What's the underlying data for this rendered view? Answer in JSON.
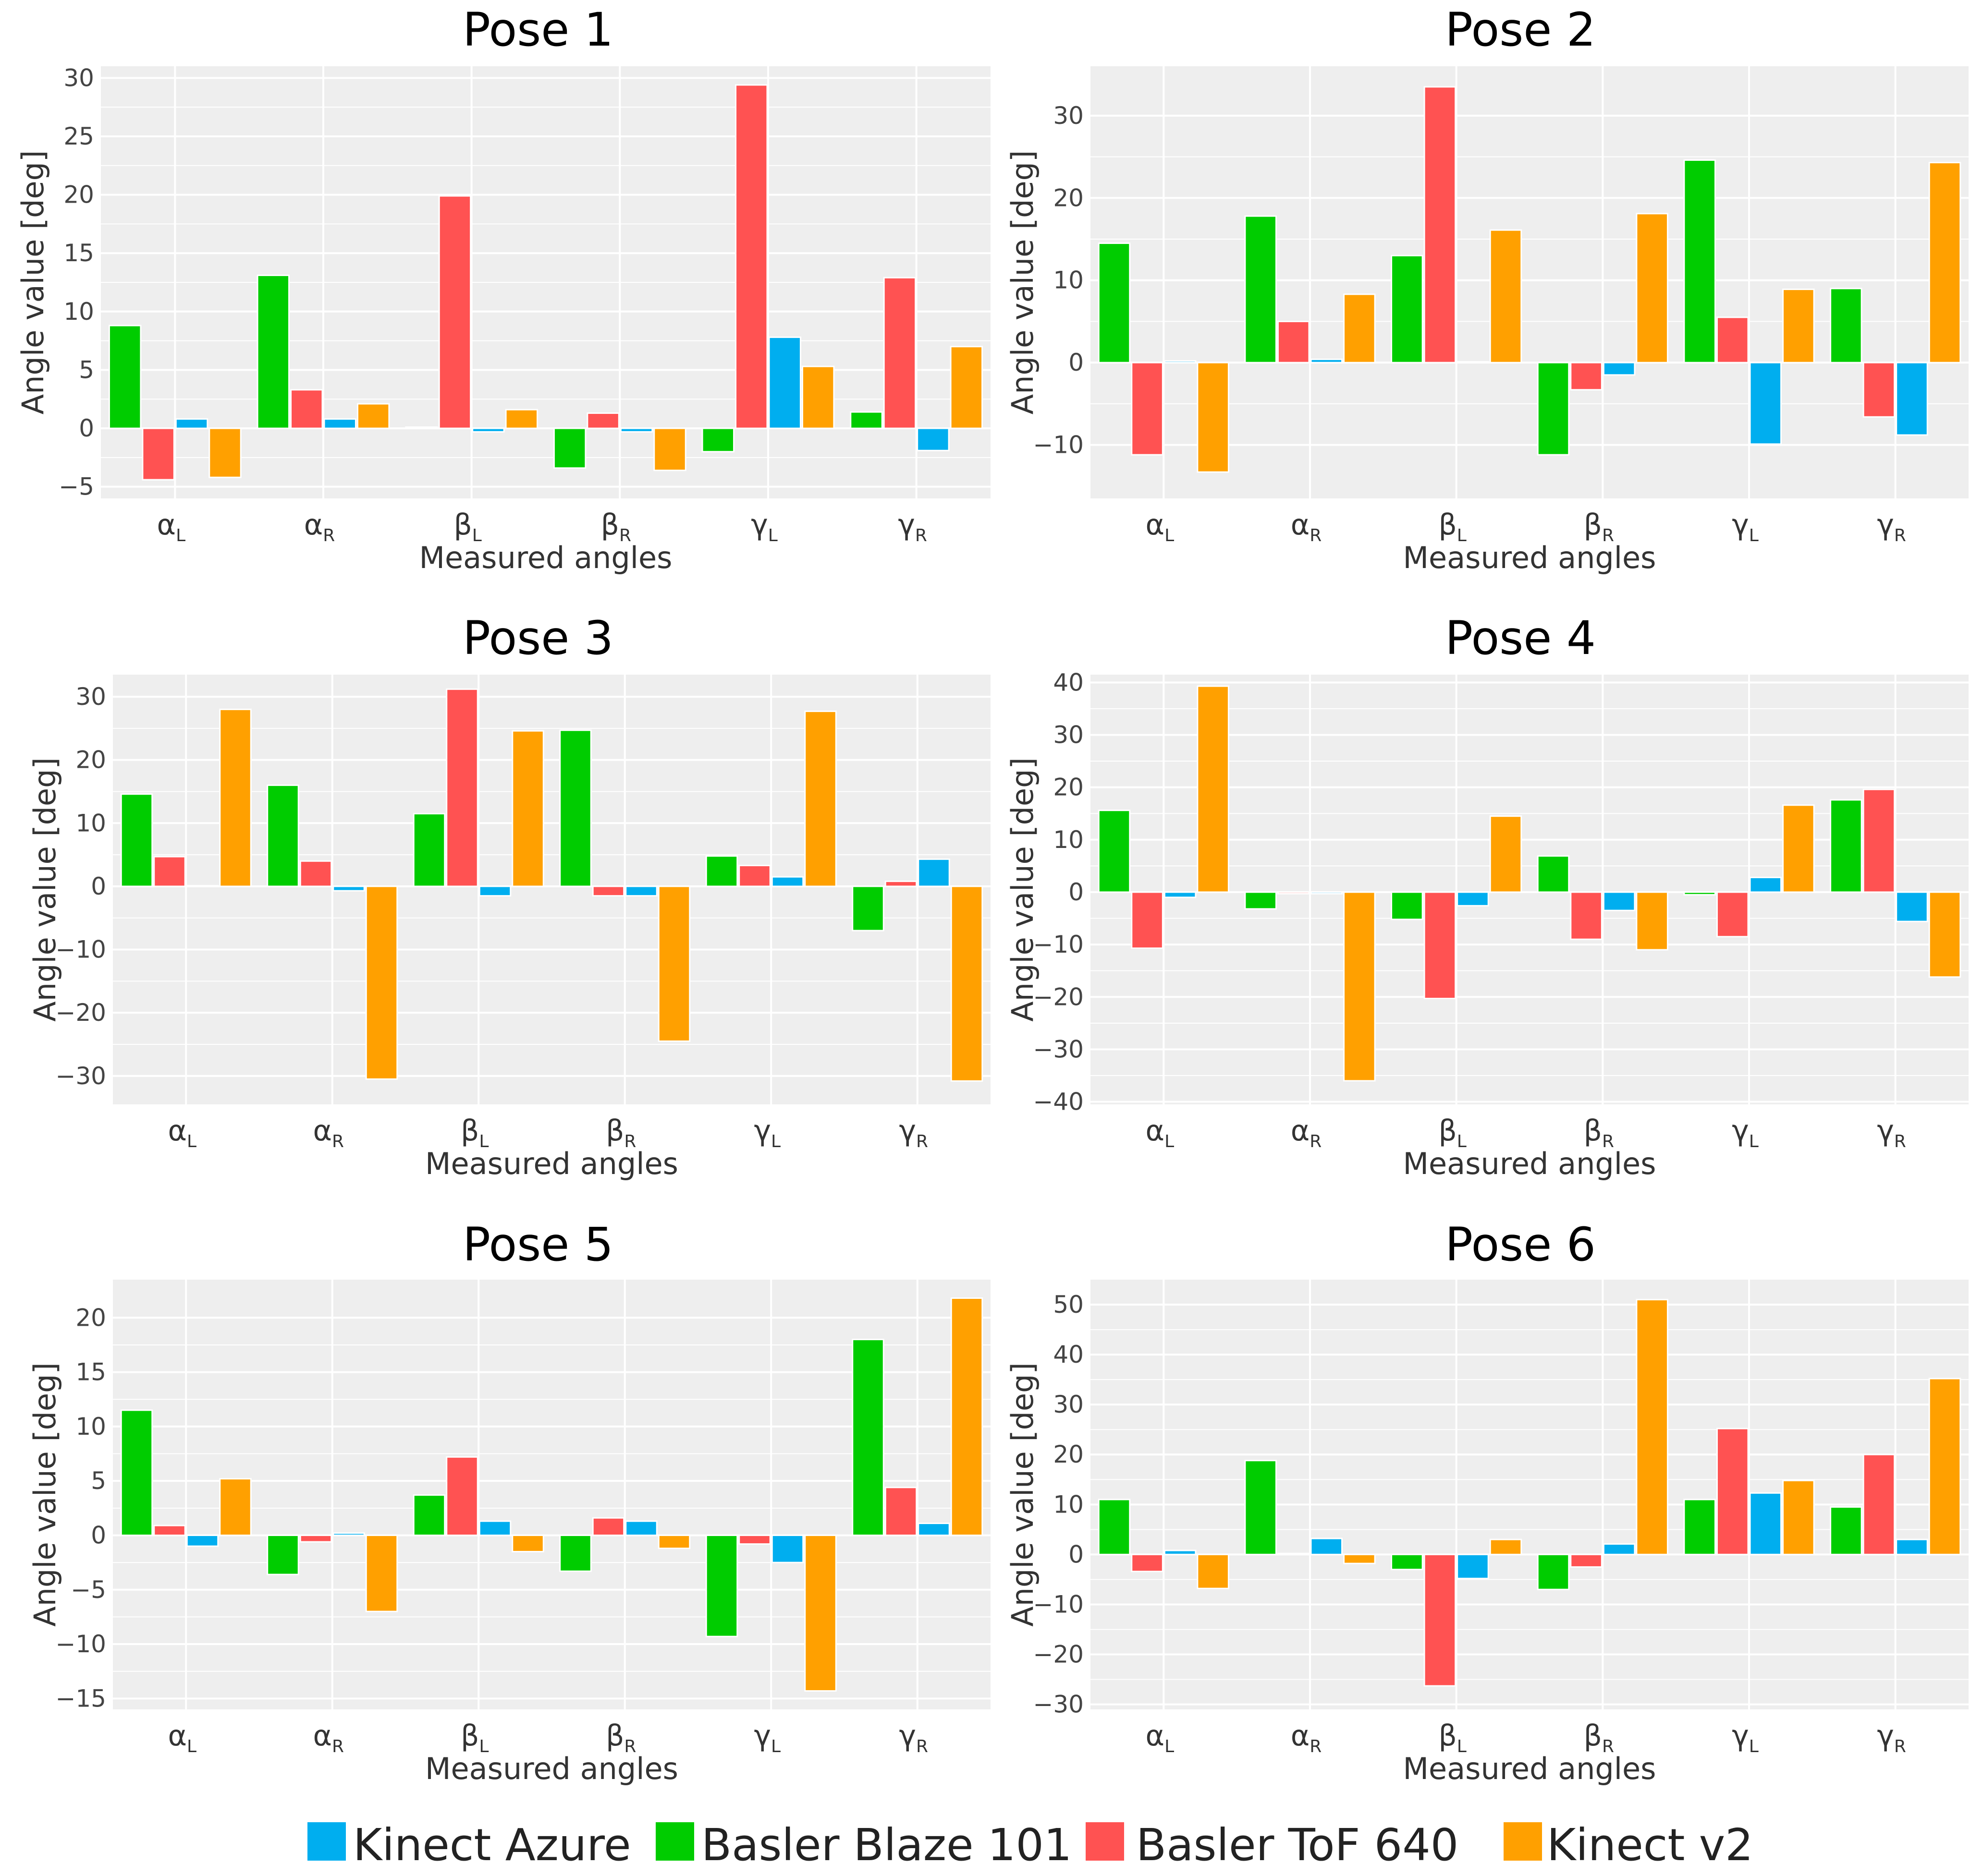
{
  "colors": {
    "Kinect Azure": "#00AEEF",
    "Basler Blaze 101": "#00CC00",
    "Basler ToF 640": "#FF5252",
    "Kinect v2": "#FFA000",
    "panel_bg": "#EEEEEE",
    "grid": "#FFFFFF"
  },
  "legend": {
    "placement": "bottom",
    "items": [
      "Kinect Azure",
      "Basler Blaze 101",
      "Basler ToF 640",
      "Kinect v2"
    ]
  },
  "categories": [
    {
      "main": "α",
      "sub": "L"
    },
    {
      "main": "α",
      "sub": "R"
    },
    {
      "main": "β",
      "sub": "L"
    },
    {
      "main": "β",
      "sub": "R"
    },
    {
      "main": "γ",
      "sub": "L"
    },
    {
      "main": "γ",
      "sub": "R"
    }
  ],
  "chart_data": [
    {
      "type": "bar",
      "title": "Pose 1",
      "xlabel": "Measured angles",
      "ylabel": "Angle value [deg]",
      "ylim": [
        -6,
        31
      ],
      "yticks": [
        -5,
        0,
        5,
        10,
        15,
        20,
        25,
        30
      ],
      "grid": true,
      "series": [
        {
          "name": "Basler Blaze 101",
          "values": [
            8.8,
            13.1,
            0.1,
            -3.4,
            -2.0,
            1.4
          ]
        },
        {
          "name": "Basler ToF 640",
          "values": [
            -4.4,
            3.3,
            19.9,
            1.3,
            29.4,
            12.9
          ]
        },
        {
          "name": "Kinect Azure",
          "values": [
            0.8,
            0.8,
            -0.3,
            -0.3,
            7.8,
            -1.9
          ]
        },
        {
          "name": "Kinect v2",
          "values": [
            -4.2,
            2.1,
            1.6,
            -3.6,
            5.3,
            7.0
          ]
        }
      ]
    },
    {
      "type": "bar",
      "title": "Pose 2",
      "xlabel": "Measured angles",
      "ylabel": "Angle value [deg]",
      "ylim": [
        -16.5,
        36
      ],
      "yticks": [
        -10,
        0,
        10,
        20,
        30
      ],
      "grid": true,
      "series": [
        {
          "name": "Basler Blaze 101",
          "values": [
            14.5,
            17.8,
            13.0,
            -11.2,
            24.6,
            9.0
          ]
        },
        {
          "name": "Basler ToF 640",
          "values": [
            -11.2,
            5.0,
            33.5,
            -3.3,
            5.5,
            -6.6
          ]
        },
        {
          "name": "Kinect Azure",
          "values": [
            0.2,
            0.4,
            0.1,
            -1.5,
            -9.9,
            -8.8
          ]
        },
        {
          "name": "Kinect v2",
          "values": [
            -13.3,
            8.3,
            16.1,
            18.1,
            8.9,
            24.3
          ]
        }
      ]
    },
    {
      "type": "bar",
      "title": "Pose 3",
      "xlabel": "Measured angles",
      "ylabel": "Angle value [deg]",
      "ylim": [
        -34.5,
        33.5
      ],
      "yticks": [
        -30,
        -20,
        -10,
        0,
        10,
        20,
        30
      ],
      "grid": true,
      "series": [
        {
          "name": "Basler Blaze 101",
          "values": [
            14.6,
            16.0,
            11.5,
            24.7,
            4.8,
            -7.0
          ]
        },
        {
          "name": "Basler ToF 640",
          "values": [
            4.7,
            4.0,
            31.2,
            -1.5,
            3.3,
            0.8
          ]
        },
        {
          "name": "Kinect Azure",
          "values": [
            0.1,
            -0.7,
            -1.5,
            -1.5,
            1.5,
            4.3
          ]
        },
        {
          "name": "Kinect v2",
          "values": [
            28.0,
            -30.5,
            24.6,
            -24.5,
            27.7,
            -30.8
          ]
        }
      ]
    },
    {
      "type": "bar",
      "title": "Pose 4",
      "xlabel": "Measured angles",
      "ylabel": "Angle value [deg]",
      "ylim": [
        -40.5,
        41.5
      ],
      "yticks": [
        -40,
        -30,
        -20,
        -10,
        0,
        10,
        20,
        30,
        40
      ],
      "grid": true,
      "series": [
        {
          "name": "Basler Blaze 101",
          "values": [
            15.6,
            -3.2,
            -5.2,
            6.9,
            -0.5,
            17.6
          ]
        },
        {
          "name": "Basler ToF 640",
          "values": [
            -10.7,
            -0.3,
            -20.3,
            -9.0,
            -8.5,
            19.6
          ]
        },
        {
          "name": "Kinect Azure",
          "values": [
            -1.0,
            -0.3,
            -2.6,
            -3.5,
            2.8,
            -5.6
          ]
        },
        {
          "name": "Kinect v2",
          "values": [
            39.3,
            -36.0,
            14.5,
            -11.0,
            16.6,
            -16.2
          ]
        }
      ]
    },
    {
      "type": "bar",
      "title": "Pose 5",
      "xlabel": "Measured angles",
      "ylabel": "Angle value [deg]",
      "ylim": [
        -16,
        23.5
      ],
      "yticks": [
        -15,
        -10,
        -5,
        0,
        5,
        10,
        15,
        20
      ],
      "grid": true,
      "series": [
        {
          "name": "Basler Blaze 101",
          "values": [
            11.5,
            -3.6,
            3.7,
            -3.3,
            -9.3,
            18.0
          ]
        },
        {
          "name": "Basler ToF 640",
          "values": [
            0.9,
            -0.6,
            7.2,
            1.6,
            -0.8,
            4.4
          ]
        },
        {
          "name": "Kinect Azure",
          "values": [
            -1.0,
            0.2,
            1.3,
            1.3,
            -2.5,
            1.1
          ]
        },
        {
          "name": "Kinect v2",
          "values": [
            5.2,
            -7.0,
            -1.5,
            -1.2,
            -14.3,
            21.8
          ]
        }
      ]
    },
    {
      "type": "bar",
      "title": "Pose 6",
      "xlabel": "Measured angles",
      "ylabel": "Angle value [deg]",
      "ylim": [
        -31,
        55
      ],
      "yticks": [
        -30,
        -20,
        -10,
        0,
        10,
        20,
        30,
        40,
        50
      ],
      "grid": true,
      "series": [
        {
          "name": "Basler Blaze 101",
          "values": [
            11.0,
            18.8,
            -3.0,
            -7.0,
            11.0,
            9.5
          ]
        },
        {
          "name": "Basler ToF 640",
          "values": [
            -3.4,
            0.2,
            -26.3,
            -2.5,
            25.2,
            20.0
          ]
        },
        {
          "name": "Kinect Azure",
          "values": [
            0.8,
            3.2,
            -4.8,
            2.1,
            12.3,
            3.0
          ]
        },
        {
          "name": "Kinect v2",
          "values": [
            -6.8,
            -1.8,
            3.0,
            51.0,
            14.8,
            35.2
          ]
        }
      ]
    }
  ]
}
